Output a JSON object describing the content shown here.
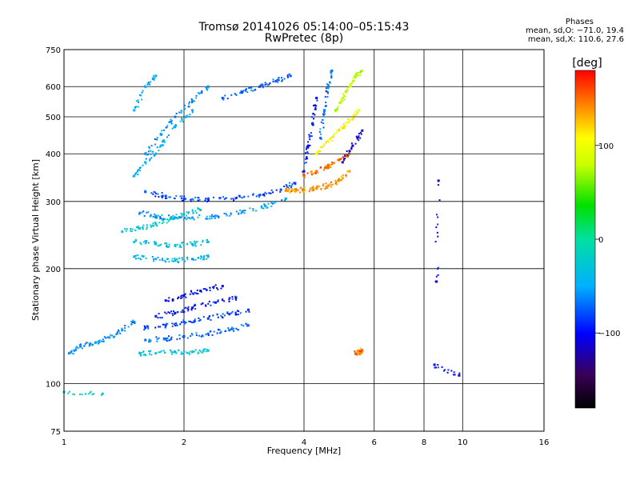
{
  "title": "Tromsø 20141026 05:14:00–05:15:43",
  "subtitle": "RwPretec (8p)",
  "stats": {
    "heading": "Phases",
    "line_o": "mean, sd,O: −71.0, 19.4",
    "line_x": "mean, sd,X: 110.6, 27.6"
  },
  "colorbar": {
    "label": "[deg]",
    "ticks": [
      {
        "value": 100,
        "label": "100"
      },
      {
        "value": 0,
        "label": "0"
      },
      {
        "value": -100,
        "label": "−100"
      }
    ],
    "range": [
      -180,
      180
    ]
  },
  "chart_data": {
    "type": "scatter",
    "title": "Tromsø 20141026 05:14:00–05:15:43",
    "subtitle": "RwPretec (8p)",
    "xlabel": "Frequency [MHz]",
    "ylabel": "Stationary phase Virtual Height [km]",
    "xscale": "log",
    "yscale": "log",
    "xlim": [
      1,
      16
    ],
    "ylim": [
      75,
      750
    ],
    "grid": true,
    "xticks": [
      {
        "value": 1,
        "label": "1"
      },
      {
        "value": 2,
        "label": "2"
      },
      {
        "value": 4,
        "label": "4"
      },
      {
        "value": 6,
        "label": "6"
      },
      {
        "value": 8,
        "label": "8"
      },
      {
        "value": 10,
        "label": "10"
      },
      {
        "value": 16,
        "label": "16"
      }
    ],
    "yticks": [
      {
        "value": 75,
        "label": "75"
      },
      {
        "value": 100,
        "label": "100"
      },
      {
        "value": 200,
        "label": "200"
      },
      {
        "value": 300,
        "label": "300"
      },
      {
        "value": 400,
        "label": "400"
      },
      {
        "value": 500,
        "label": "500"
      },
      {
        "value": 600,
        "label": "600"
      },
      {
        "value": 750,
        "label": "750"
      }
    ],
    "color_variable": "phase [deg]",
    "traces": [
      {
        "freq": [
          1.0,
          1.25
        ],
        "height": [
          95,
          94
        ],
        "phase": -20
      },
      {
        "freq": [
          1.03,
          1.1,
          1.2,
          1.3,
          1.4,
          1.5
        ],
        "height": [
          120,
          125,
          128,
          132,
          138,
          145
        ],
        "phase": -60
      },
      {
        "freq": [
          1.55,
          1.7,
          1.9,
          2.1,
          2.3
        ],
        "height": [
          120,
          120,
          121,
          121,
          122
        ],
        "phase": -30
      },
      {
        "freq": [
          1.6,
          1.8,
          2.0,
          2.3,
          2.6,
          2.9
        ],
        "height": [
          130,
          131,
          133,
          135,
          138,
          142
        ],
        "phase": -70
      },
      {
        "freq": [
          1.6,
          1.8,
          2.0,
          2.3,
          2.6,
          2.9
        ],
        "height": [
          140,
          142,
          145,
          148,
          152,
          156
        ],
        "phase": -85
      },
      {
        "freq": [
          1.7,
          1.9,
          2.1,
          2.4,
          2.7
        ],
        "height": [
          150,
          153,
          158,
          163,
          168
        ],
        "phase": -95
      },
      {
        "freq": [
          1.8,
          2.0,
          2.2,
          2.5
        ],
        "height": [
          165,
          170,
          175,
          180
        ],
        "phase": -100
      },
      {
        "freq": [
          1.5,
          1.7,
          1.9,
          2.1,
          2.3
        ],
        "height": [
          215,
          212,
          210,
          212,
          215
        ],
        "phase": -40
      },
      {
        "freq": [
          1.5,
          1.7,
          1.9,
          2.1,
          2.3
        ],
        "height": [
          235,
          232,
          230,
          232,
          235
        ],
        "phase": -35
      },
      {
        "freq": [
          1.4,
          1.55,
          1.7,
          1.85,
          2.0,
          2.2
        ],
        "height": [
          250,
          255,
          262,
          270,
          278,
          285
        ],
        "phase": -25
      },
      {
        "freq": [
          1.55,
          1.7,
          1.9,
          2.1,
          2.4,
          2.8,
          3.2,
          3.6
        ],
        "height": [
          280,
          275,
          272,
          272,
          275,
          282,
          292,
          305
        ],
        "phase": -55
      },
      {
        "freq": [
          1.6,
          1.8,
          2.0,
          2.3,
          2.7,
          3.1,
          3.5,
          3.8
        ],
        "height": [
          318,
          310,
          305,
          304,
          306,
          312,
          322,
          335
        ],
        "phase": -80
      },
      {
        "freq": [
          1.5,
          1.6,
          1.75,
          1.9,
          2.1
        ],
        "height": [
          350,
          380,
          420,
          470,
          520
        ],
        "phase": -45
      },
      {
        "freq": [
          1.6,
          1.75,
          1.9,
          2.1,
          2.3
        ],
        "height": [
          400,
          450,
          500,
          550,
          600
        ],
        "phase": -60
      },
      {
        "freq": [
          1.5,
          1.6,
          1.7
        ],
        "height": [
          520,
          600,
          640
        ],
        "phase": -50
      },
      {
        "freq": [
          2.5,
          2.8,
          3.1,
          3.4,
          3.7
        ],
        "height": [
          560,
          580,
          600,
          620,
          640
        ],
        "phase": -75
      },
      {
        "freq": [
          3.6,
          3.8,
          4.0,
          4.3,
          4.6,
          4.9,
          5.2
        ],
        "height": [
          320,
          320,
          322,
          325,
          330,
          340,
          360
        ],
        "phase": 140
      },
      {
        "freq": [
          4.0,
          4.3,
          4.6,
          4.9,
          5.2
        ],
        "height": [
          350,
          360,
          370,
          385,
          400
        ],
        "phase": 150
      },
      {
        "freq": [
          4.3,
          4.6,
          4.9,
          5.2,
          5.5
        ],
        "height": [
          400,
          430,
          460,
          490,
          520
        ],
        "phase": 105
      },
      {
        "freq": [
          4.8,
          5.0,
          5.2,
          5.4,
          5.6
        ],
        "height": [
          520,
          560,
          600,
          640,
          660
        ],
        "phase": 80
      },
      {
        "freq": [
          4.0,
          4.1,
          4.2,
          4.3
        ],
        "height": [
          360,
          420,
          480,
          560
        ],
        "phase": -95
      },
      {
        "freq": [
          4.4,
          4.5,
          4.6,
          4.7
        ],
        "height": [
          440,
          520,
          600,
          660
        ],
        "phase": -70
      },
      {
        "freq": [
          5.0,
          5.3,
          5.6
        ],
        "height": [
          380,
          420,
          460
        ],
        "phase": -110
      },
      {
        "freq": [
          5.4,
          5.5,
          5.6
        ],
        "height": [
          120,
          121,
          122
        ],
        "phase": 150
      },
      {
        "freq": [
          8.5,
          9.8
        ],
        "height": [
          112,
          105
        ],
        "phase": -100
      },
      {
        "freq": [
          8.6,
          8.7
        ],
        "height": [
          185,
          340
        ],
        "phase": -100
      }
    ]
  }
}
